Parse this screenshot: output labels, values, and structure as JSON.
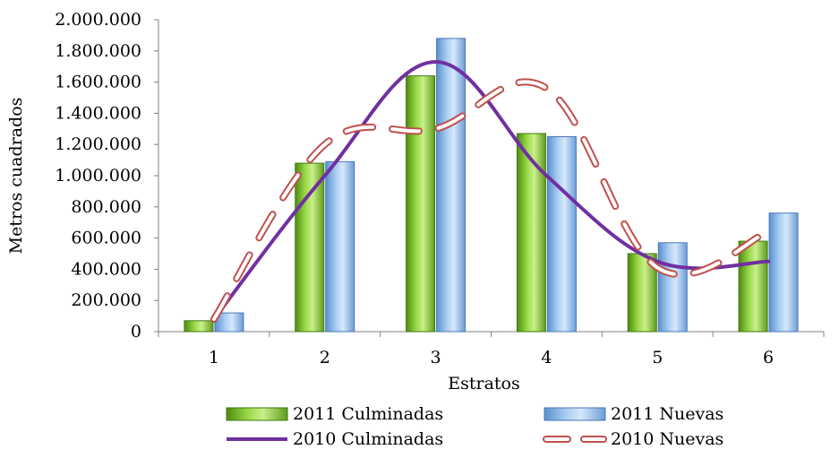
{
  "chart_data": {
    "type": "bar",
    "categories": [
      "1",
      "2",
      "3",
      "4",
      "5",
      "6"
    ],
    "series": [
      {
        "name": "2011 Culminadas",
        "kind": "bar",
        "values": [
          70000,
          1080000,
          1640000,
          1270000,
          500000,
          580000
        ],
        "color": "#8ecf3a"
      },
      {
        "name": "2011 Nuevas",
        "kind": "bar",
        "values": [
          120000,
          1090000,
          1880000,
          1250000,
          570000,
          760000
        ],
        "color": "#9cc3ea"
      },
      {
        "name": "2010 Culminadas",
        "kind": "line",
        "style": "solid smooth",
        "values": [
          80000,
          1000000,
          1730000,
          1000000,
          450000,
          450000
        ],
        "color": "#7030a0"
      },
      {
        "name": "2010 Nuevas",
        "kind": "line",
        "style": "dashed smooth",
        "values": [
          80000,
          1200000,
          1300000,
          1560000,
          410000,
          640000
        ],
        "color": "#c0504d"
      }
    ],
    "xlabel": "Estratos",
    "ylabel": "Metros cuadrados",
    "ylim": [
      0,
      2000000
    ],
    "yticks": [
      "0",
      "200.000",
      "400.000",
      "600.000",
      "800.000",
      "1.000.000",
      "1.200.000",
      "1.400.000",
      "1.600.000",
      "1.800.000",
      "2.000.000"
    ],
    "grid": false,
    "legend_position": "bottom"
  }
}
